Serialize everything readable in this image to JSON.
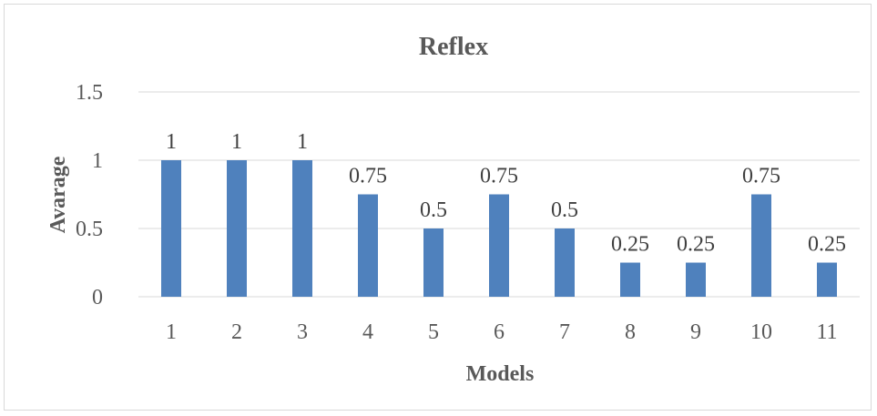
{
  "chart_data": {
    "type": "bar",
    "title": "Reflex",
    "xlabel": "Models",
    "ylabel": "Avarage",
    "categories": [
      "1",
      "2",
      "3",
      "4",
      "5",
      "6",
      "7",
      "8",
      "9",
      "10",
      "11"
    ],
    "values": [
      1,
      1,
      1,
      0.75,
      0.5,
      0.75,
      0.5,
      0.25,
      0.25,
      0.75,
      0.25
    ],
    "data_labels": [
      "1",
      "1",
      "1",
      "0.75",
      "0.5",
      "0.75",
      "0.5",
      "0.25",
      "0.25",
      "0.75",
      "0.25"
    ],
    "ylim": [
      0,
      1.5
    ],
    "yticks": [
      0,
      0.5,
      1,
      1.5
    ],
    "ytick_labels": [
      "0",
      "0.5",
      "1",
      "1.5"
    ],
    "grid": true,
    "legend": "none",
    "bar_color": "#4f81bd",
    "grid_color": "#d9d9d9"
  }
}
